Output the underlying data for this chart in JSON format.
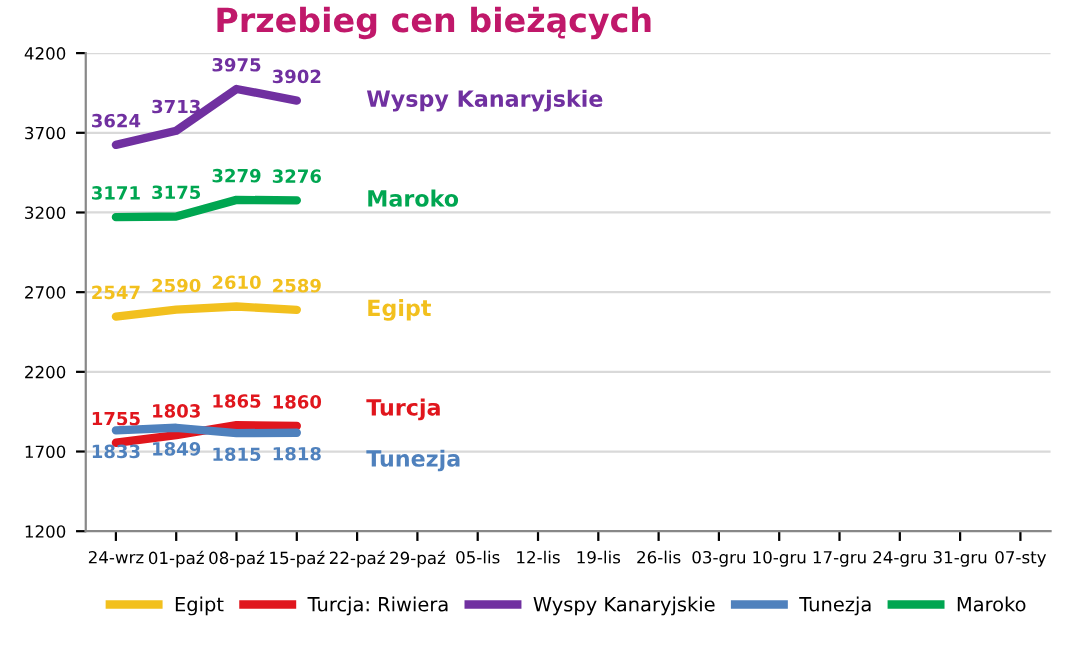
{
  "chart_data": {
    "type": "line",
    "title": "Przebieg cen bieżących",
    "categories": [
      "24-wrz",
      "01-paź",
      "08-paź",
      "15-paź",
      "22-paź",
      "29-paź",
      "05-lis",
      "12-lis",
      "19-lis",
      "26-lis",
      "03-gru",
      "10-gru",
      "17-gru",
      "24-gru",
      "31-gru",
      "07-sty"
    ],
    "series": [
      {
        "name": "Egipt",
        "color": "#f2c01e",
        "values": [
          2547,
          2590,
          2610,
          2589,
          null,
          null,
          null,
          null,
          null,
          null,
          null,
          null,
          null,
          null,
          null,
          null
        ]
      },
      {
        "name": "Turcja: Riwiera",
        "color": "#e0161d",
        "values": [
          1755,
          1803,
          1865,
          1860,
          null,
          null,
          null,
          null,
          null,
          null,
          null,
          null,
          null,
          null,
          null,
          null
        ]
      },
      {
        "name": "Wyspy Kanaryjskie",
        "color": "#7030a0",
        "values": [
          3624,
          3713,
          3975,
          3902,
          null,
          null,
          null,
          null,
          null,
          null,
          null,
          null,
          null,
          null,
          null,
          null
        ]
      },
      {
        "name": "Tunezja",
        "color": "#4f81bd",
        "values": [
          1833,
          1849,
          1815,
          1818,
          null,
          null,
          null,
          null,
          null,
          null,
          null,
          null,
          null,
          null,
          null,
          null
        ]
      },
      {
        "name": "Maroko",
        "color": "#00a651",
        "values": [
          3171,
          3175,
          3279,
          3276,
          null,
          null,
          null,
          null,
          null,
          null,
          null,
          null,
          null,
          null,
          null,
          null
        ]
      }
    ],
    "annotations": [
      "Wyspy Kanaryjskie",
      "Maroko",
      "Egipt",
      "Turcja",
      "Tunezja"
    ],
    "ylim": [
      1200,
      4200
    ],
    "yticks": [
      1200,
      1700,
      2200,
      2700,
      3200,
      3700,
      4200
    ],
    "grid": "y",
    "legend": "bottom",
    "data_labels": true,
    "marker": "none",
    "line_style": "solid"
  }
}
